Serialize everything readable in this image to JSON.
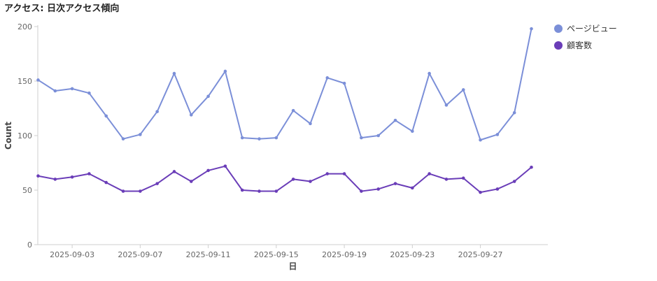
{
  "chart_data": {
    "type": "line",
    "title": "アクセス: 日次アクセス傾向",
    "xlabel": "日",
    "ylabel": "Count",
    "ylim": [
      0,
      200
    ],
    "yticks": [
      0,
      50,
      100,
      150,
      200
    ],
    "grid": false,
    "legend_position": "top-right",
    "x": [
      "2025-09-01",
      "2025-09-02",
      "2025-09-03",
      "2025-09-04",
      "2025-09-05",
      "2025-09-06",
      "2025-09-07",
      "2025-09-08",
      "2025-09-09",
      "2025-09-10",
      "2025-09-11",
      "2025-09-12",
      "2025-09-13",
      "2025-09-14",
      "2025-09-15",
      "2025-09-16",
      "2025-09-17",
      "2025-09-18",
      "2025-09-19",
      "2025-09-20",
      "2025-09-21",
      "2025-09-22",
      "2025-09-23",
      "2025-09-24",
      "2025-09-25",
      "2025-09-26",
      "2025-09-27",
      "2025-09-28",
      "2025-09-29",
      "2025-09-30"
    ],
    "xtick_labels": [
      "2025-09-03",
      "2025-09-07",
      "2025-09-11",
      "2025-09-15",
      "2025-09-19",
      "2025-09-23",
      "2025-09-27"
    ],
    "series": [
      {
        "name": "ページビュー",
        "color": "#7b8fd8",
        "values": [
          151,
          141,
          143,
          139,
          118,
          97,
          101,
          122,
          157,
          119,
          136,
          159,
          98,
          97,
          98,
          123,
          111,
          153,
          148,
          98,
          100,
          114,
          104,
          157,
          128,
          142,
          96,
          101,
          121,
          198
        ]
      },
      {
        "name": "顧客数",
        "color": "#6a3db8",
        "values": [
          63,
          60,
          62,
          65,
          57,
          49,
          49,
          56,
          67,
          58,
          68,
          72,
          50,
          49,
          49,
          60,
          58,
          65,
          65,
          49,
          51,
          56,
          52,
          65,
          60,
          61,
          48,
          51,
          58,
          71
        ]
      }
    ]
  }
}
